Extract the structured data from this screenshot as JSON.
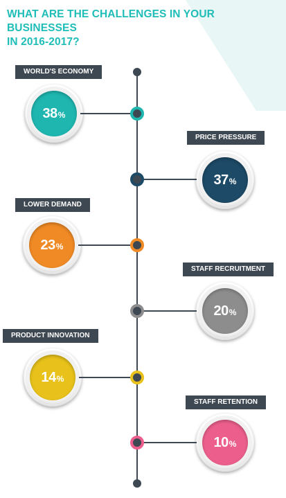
{
  "title_lines": [
    "WHAT ARE THE CHALLENGES IN YOUR BUSINESSES",
    "IN 2016-2017?"
  ],
  "colors": {
    "title": "#1fbdb7",
    "timeline": "#3d4852",
    "label_bg": "#3d4852",
    "background_accent": "#e9f6f6"
  },
  "challenges": [
    {
      "label": "WORLD'S ECONOMY",
      "value": "38",
      "unit": "%",
      "color": "#1fb6b0"
    },
    {
      "label": "PRICE PRESSURE",
      "value": "37",
      "unit": "%",
      "color": "#1d4a66"
    },
    {
      "label": "LOWER DEMAND",
      "value": "23",
      "unit": "%",
      "color": "#f08a24"
    },
    {
      "label": "STAFF RECRUITMENT",
      "value": "20",
      "unit": "%",
      "color": "#8d8d8d"
    },
    {
      "label": "PRODUCT INNOVATION",
      "value": "14",
      "unit": "%",
      "color": "#e8c21a"
    },
    {
      "label": "STAFF RETENTION",
      "value": "10",
      "unit": "%",
      "color": "#ec5f8c"
    }
  ]
}
